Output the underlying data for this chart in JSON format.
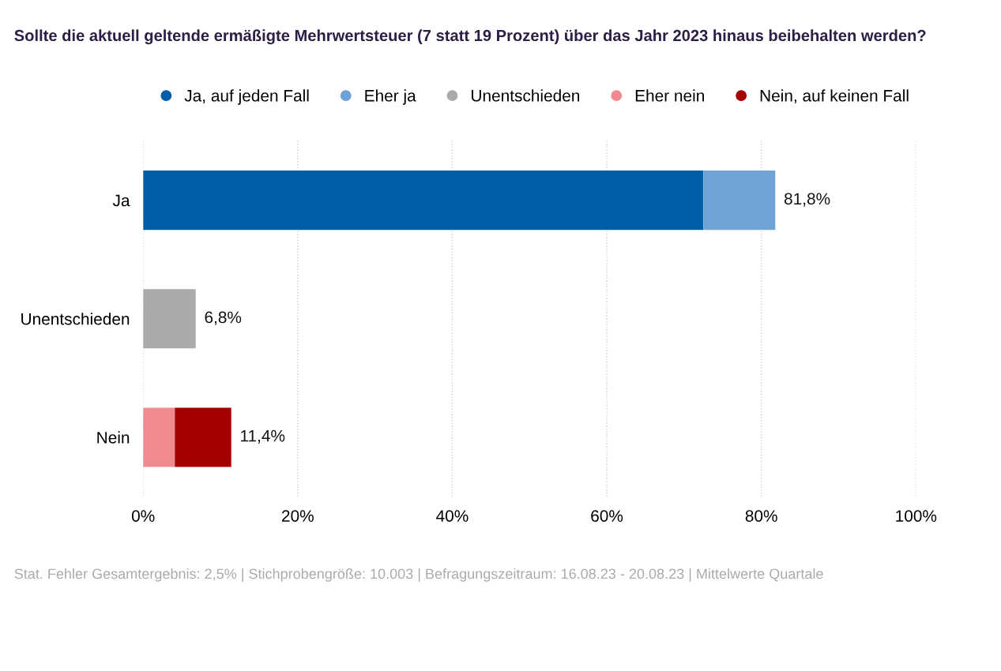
{
  "chart_data": {
    "type": "bar",
    "orientation": "horizontal",
    "stacked": true,
    "title": "Sollte die aktuell geltende ermäßigte Mehrwertsteuer (7 statt 19 Prozent) über das Jahr 2023 hinaus beibehalten werden?",
    "categories": [
      "Ja",
      "Unentschieden",
      "Nein"
    ],
    "series": [
      {
        "name": "Ja, auf jeden Fall",
        "color": "#005ea8",
        "values": [
          72.5,
          null,
          null
        ]
      },
      {
        "name": "Eher ja",
        "color": "#6fa3d6",
        "values": [
          9.3,
          null,
          null
        ]
      },
      {
        "name": "Unentschieden",
        "color": "#aaaaaa",
        "values": [
          null,
          6.8,
          null
        ]
      },
      {
        "name": "Eher nein",
        "color": "#f08a91",
        "values": [
          null,
          null,
          4.1
        ]
      },
      {
        "name": "Nein, auf keinen Fall",
        "color": "#a50000",
        "values": [
          null,
          null,
          7.3
        ]
      }
    ],
    "totals": [
      "81,8%",
      "6,8%",
      "11,4%"
    ],
    "xlim": [
      0,
      100
    ],
    "xticks": [
      {
        "value": 0,
        "label": "0%"
      },
      {
        "value": 20,
        "label": "20%"
      },
      {
        "value": 40,
        "label": "40%"
      },
      {
        "value": 60,
        "label": "60%"
      },
      {
        "value": 80,
        "label": "80%"
      },
      {
        "value": 100,
        "label": "100%"
      }
    ],
    "grid": "x",
    "legend": "top",
    "marker": "circle",
    "annotations": [
      "Stat. Fehler Gesamtergebnis: 2,5% | Stichprobengröße: 10.003 | Befragungszeitraum: 16.08.23 - 20.08.23 | Mittelwerte Quartale"
    ]
  }
}
